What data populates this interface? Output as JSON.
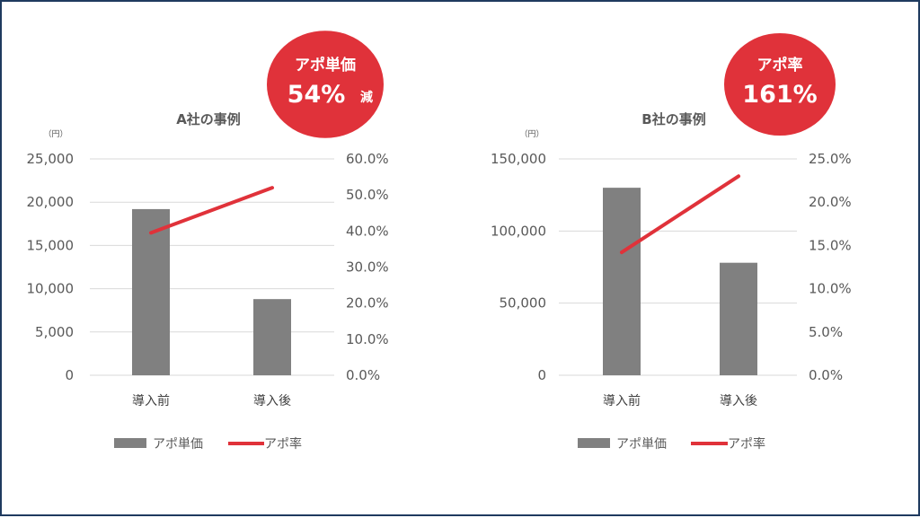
{
  "colors": {
    "bar": "#808080",
    "line": "#e0323a",
    "grid": "#d9d9d9",
    "badge": "#e0323a",
    "text": "#595959"
  },
  "chart_data": [
    {
      "type": "bar",
      "title": "A社の事例",
      "unit_label": "（円）",
      "categories": [
        "導入前",
        "導入後"
      ],
      "series": [
        {
          "name": "アポ単価",
          "type": "bar",
          "axis": "left",
          "values": [
            19200,
            8800
          ]
        },
        {
          "name": "アポ率",
          "type": "line",
          "axis": "right",
          "values": [
            0.395,
            0.52
          ]
        }
      ],
      "left_axis": {
        "min": 0,
        "max": 25000,
        "ticks": [
          "0",
          "5,000",
          "10,000",
          "15,000",
          "20,000",
          "25,000"
        ]
      },
      "right_axis": {
        "min": 0,
        "max": 0.6,
        "ticks": [
          "0.0%",
          "10.0%",
          "20.0%",
          "30.0%",
          "40.0%",
          "50.0%",
          "60.0%"
        ]
      },
      "grid": true,
      "legend_position": "bottom",
      "badge": {
        "line1": "アポ単価",
        "line2": "54%",
        "line3": "減"
      }
    },
    {
      "type": "bar",
      "title": "B社の事例",
      "unit_label": "（円）",
      "categories": [
        "導入前",
        "導入後"
      ],
      "series": [
        {
          "name": "アポ単価",
          "type": "bar",
          "axis": "left",
          "values": [
            130000,
            78000
          ]
        },
        {
          "name": "アポ率",
          "type": "line",
          "axis": "right",
          "values": [
            0.142,
            0.23
          ]
        }
      ],
      "left_axis": {
        "min": 0,
        "max": 150000,
        "ticks": [
          "0",
          "50,000",
          "100,000",
          "150,000"
        ]
      },
      "right_axis": {
        "min": 0,
        "max": 0.25,
        "ticks": [
          "0.0%",
          "5.0%",
          "10.0%",
          "15.0%",
          "20.0%",
          "25.0%"
        ]
      },
      "grid": true,
      "legend_position": "bottom",
      "badge": {
        "line1": "アポ率",
        "line2": "161%",
        "line3": ""
      }
    }
  ]
}
